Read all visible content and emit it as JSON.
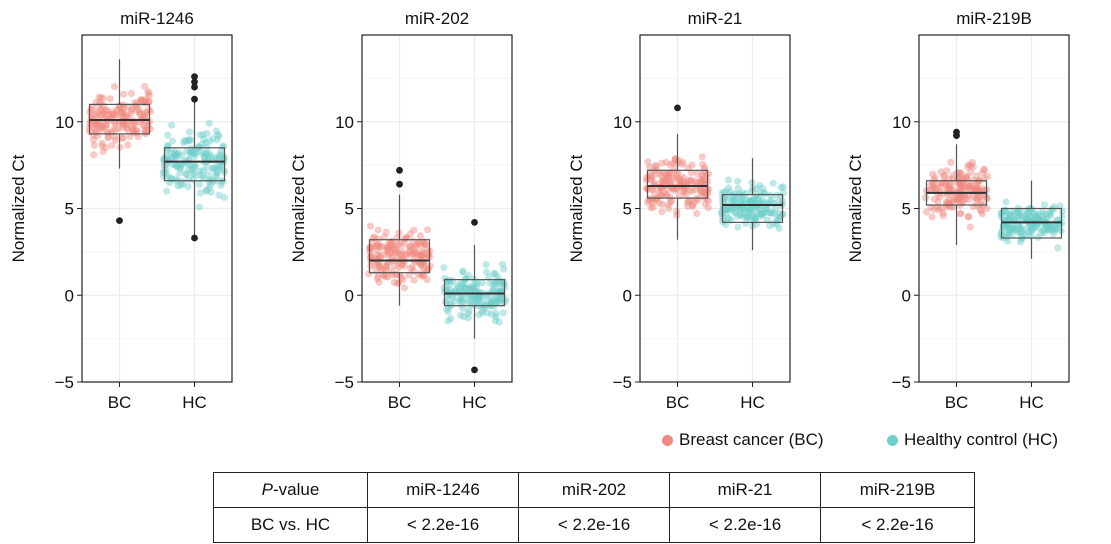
{
  "chart_data": {
    "type": "box+jitter",
    "ylabel": "Normalized Ct",
    "ylim": [
      -5,
      15
    ],
    "yticks": [
      "−5",
      "0",
      "5",
      "10"
    ],
    "ytick_values": [
      -5,
      0,
      5,
      10
    ],
    "categories": [
      "BC",
      "HC"
    ],
    "colors": {
      "BC": "#f08a80",
      "HC": "#6fcfc9",
      "outlier": "#222222",
      "box": "#555555"
    },
    "grid": true,
    "panels": [
      {
        "title": "miR-1246",
        "BC": {
          "min": 7.3,
          "q1": 9.3,
          "median": 10.1,
          "q3": 11.0,
          "max": 13.6,
          "center": 10.1,
          "spread": 1.2,
          "outliers": [
            4.3
          ]
        },
        "HC": {
          "min": 3.3,
          "q1": 6.6,
          "median": 7.7,
          "q3": 8.5,
          "max": 11.3,
          "center": 7.6,
          "spread": 1.4,
          "outliers": [
            3.3,
            11.3,
            12.0,
            12.3,
            12.6
          ]
        }
      },
      {
        "title": "miR-202",
        "BC": {
          "min": -0.6,
          "q1": 1.3,
          "median": 2.0,
          "q3": 3.2,
          "max": 5.8,
          "center": 2.2,
          "spread": 1.3,
          "outliers": [
            6.4,
            7.2
          ]
        },
        "HC": {
          "min": -2.5,
          "q1": -0.6,
          "median": 0.1,
          "q3": 0.9,
          "max": 2.9,
          "center": 0.1,
          "spread": 1.1,
          "outliers": [
            4.2,
            -4.3
          ]
        }
      },
      {
        "title": "miR-21",
        "BC": {
          "min": 3.2,
          "q1": 5.6,
          "median": 6.3,
          "q3": 7.2,
          "max": 9.3,
          "center": 6.3,
          "spread": 1.3,
          "outliers": [
            10.8
          ]
        },
        "HC": {
          "min": 2.6,
          "q1": 4.2,
          "median": 5.2,
          "q3": 5.8,
          "max": 7.9,
          "center": 5.1,
          "spread": 1.0,
          "outliers": []
        }
      },
      {
        "title": "miR-219B",
        "BC": {
          "min": 2.9,
          "q1": 5.2,
          "median": 5.9,
          "q3": 6.6,
          "max": 8.7,
          "center": 6.0,
          "spread": 1.2,
          "outliers": [
            9.2,
            9.4
          ]
        },
        "HC": {
          "min": 2.1,
          "q1": 3.3,
          "median": 4.2,
          "q3": 5.0,
          "max": 6.6,
          "center": 4.2,
          "spread": 0.9,
          "outliers": []
        }
      }
    ]
  },
  "legend": [
    {
      "label": "Breast cancer (BC)",
      "color": "#f08a80"
    },
    {
      "label": "Healthy control (HC)",
      "color": "#6fcfc9"
    }
  ],
  "table": {
    "header": {
      "p": "P",
      "suffix": "-value",
      "cols": [
        "miR-1246",
        "miR-202",
        "miR-21",
        "miR-219B"
      ]
    },
    "row": {
      "label": "BC vs. HC",
      "values": [
        "< 2.2e-16",
        "< 2.2e-16",
        "< 2.2e-16",
        "< 2.2e-16"
      ]
    }
  }
}
